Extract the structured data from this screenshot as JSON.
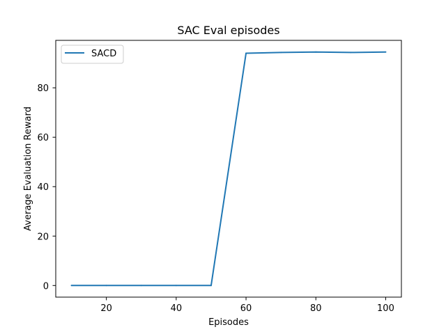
{
  "chart_data": {
    "type": "line",
    "title": "SAC Eval episodes",
    "xlabel": "Episodes",
    "ylabel": "Average Evaluation Reward",
    "xlim": [
      5.5,
      104.5
    ],
    "ylim": [
      -4.7,
      99.2
    ],
    "xticks": [
      20,
      40,
      60,
      80,
      100
    ],
    "yticks": [
      0,
      20,
      40,
      60,
      80
    ],
    "grid": false,
    "legend_position": "top-left",
    "series": [
      {
        "name": "SACD",
        "color": "#1f77b4",
        "x": [
          10,
          20,
          30,
          40,
          50,
          60,
          70,
          80,
          90,
          100
        ],
        "y": [
          0,
          0,
          0,
          0,
          0,
          94.0,
          94.3,
          94.5,
          94.3,
          94.5
        ]
      }
    ]
  }
}
